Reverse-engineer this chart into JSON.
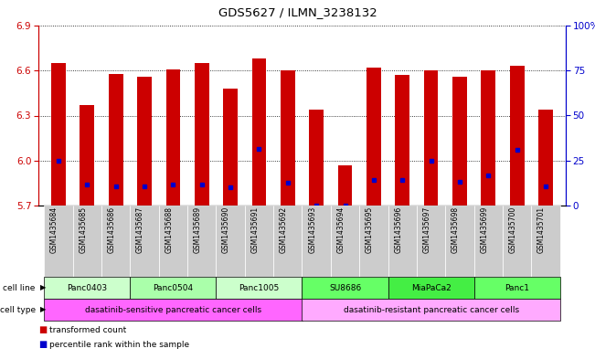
{
  "title": "GDS5627 / ILMN_3238132",
  "samples": [
    "GSM1435684",
    "GSM1435685",
    "GSM1435686",
    "GSM1435687",
    "GSM1435688",
    "GSM1435689",
    "GSM1435690",
    "GSM1435691",
    "GSM1435692",
    "GSM1435693",
    "GSM1435694",
    "GSM1435695",
    "GSM1435696",
    "GSM1435697",
    "GSM1435698",
    "GSM1435699",
    "GSM1435700",
    "GSM1435701"
  ],
  "bar_values": [
    6.65,
    6.37,
    6.58,
    6.56,
    6.61,
    6.65,
    6.48,
    6.68,
    6.6,
    6.34,
    5.97,
    6.62,
    6.57,
    6.6,
    6.56,
    6.6,
    6.63,
    6.34
  ],
  "blue_marker_values": [
    6.0,
    5.84,
    5.83,
    5.83,
    5.84,
    5.84,
    5.82,
    6.08,
    5.85,
    5.7,
    5.7,
    5.87,
    5.87,
    6.0,
    5.86,
    5.9,
    6.07,
    5.83
  ],
  "ylim_left": [
    5.7,
    6.9
  ],
  "yticks_left": [
    5.7,
    6.0,
    6.3,
    6.6,
    6.9
  ],
  "ylim_right": [
    0,
    100
  ],
  "yticks_right": [
    0,
    25,
    50,
    75,
    100
  ],
  "bar_color": "#cc0000",
  "blue_marker_color": "#0000cc",
  "bar_bottom": 5.7,
  "cell_lines": [
    {
      "name": "Panc0403",
      "start": 0,
      "end": 3,
      "color": "#ccffcc"
    },
    {
      "name": "Panc0504",
      "start": 3,
      "end": 6,
      "color": "#aaffaa"
    },
    {
      "name": "Panc1005",
      "start": 6,
      "end": 9,
      "color": "#ccffcc"
    },
    {
      "name": "SU8686",
      "start": 9,
      "end": 12,
      "color": "#66ff66"
    },
    {
      "name": "MiaPaCa2",
      "start": 12,
      "end": 15,
      "color": "#44ee44"
    },
    {
      "name": "Panc1",
      "start": 15,
      "end": 18,
      "color": "#66ff66"
    }
  ],
  "cell_types": [
    {
      "name": "dasatinib-sensitive pancreatic cancer cells",
      "start": 0,
      "end": 9,
      "color": "#ff66ff"
    },
    {
      "name": "dasatinib-resistant pancreatic cancer cells",
      "start": 9,
      "end": 18,
      "color": "#ffaaff"
    }
  ],
  "grid_color": "#888888",
  "bg_color": "#ffffff",
  "sample_bg_color": "#cccccc",
  "axis_left_color": "#cc0000",
  "axis_right_color": "#0000cc"
}
